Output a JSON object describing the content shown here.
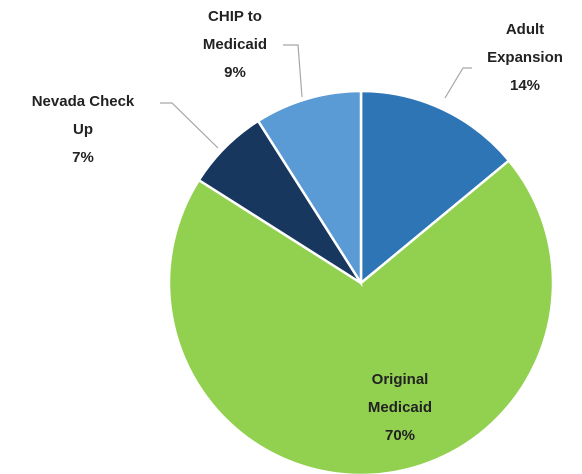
{
  "chart_data": {
    "type": "pie",
    "categories": [
      "Adult Expansion",
      "Original Medicaid",
      "Nevada Check Up",
      "CHIP to Medicaid"
    ],
    "values": [
      14,
      70,
      7,
      9
    ],
    "value_labels": [
      "14%",
      "70%",
      "7%",
      "9%"
    ],
    "colors": [
      "#2e75b6",
      "#92d050",
      "#17375e",
      "#5b9bd5"
    ]
  }
}
